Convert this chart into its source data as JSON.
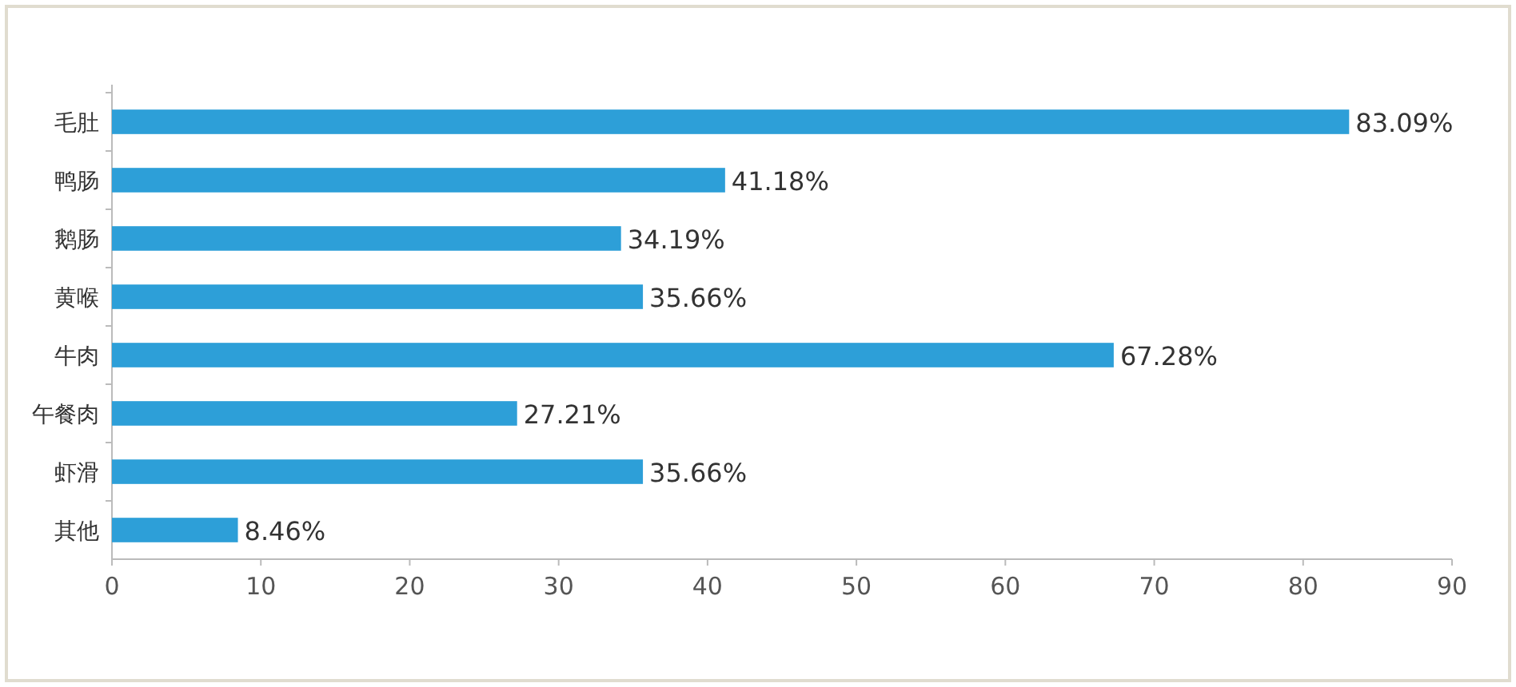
{
  "chart_data": {
    "type": "bar",
    "orientation": "horizontal",
    "categories": [
      "毛肚",
      "鸭肠",
      "鹅肠",
      "黄喉",
      "牛肉",
      "午餐肉",
      "虾滑",
      "其他"
    ],
    "values": [
      83.09,
      41.18,
      34.19,
      35.66,
      67.28,
      27.21,
      35.66,
      8.46
    ],
    "value_labels": [
      "83.09%",
      "41.18%",
      "34.19%",
      "35.66%",
      "67.28%",
      "27.21%",
      "35.66%",
      "8.46%"
    ],
    "color": "#2d9fd8",
    "xlim": [
      0,
      90
    ],
    "xticks": [
      0,
      10,
      20,
      30,
      40,
      50,
      60,
      70,
      80,
      90
    ]
  }
}
